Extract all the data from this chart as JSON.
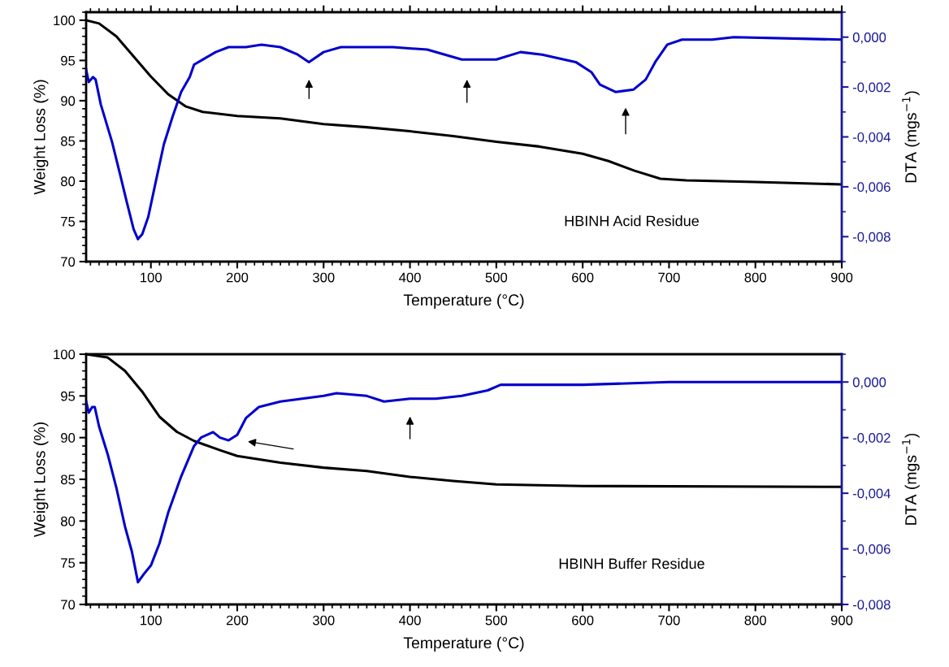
{
  "chart_data": [
    {
      "type": "line",
      "xlabel": "Temperature (°C)",
      "ylabel": "Weight Loss (%)",
      "y2label": "DTA (mgs$^{−1}$)",
      "annotations": [
        "HBINH Acid Residue"
      ],
      "xlim": [
        25,
        900
      ],
      "xticks": [
        100,
        200,
        300,
        400,
        500,
        600,
        700,
        800,
        900
      ],
      "ylim": [
        70,
        101
      ],
      "yticks": [
        70,
        75,
        80,
        85,
        90,
        95,
        100
      ],
      "y2lim": [
        -0.009,
        0.001
      ],
      "y2ticks": [
        {
          "value": 0,
          "label": "0,000"
        },
        {
          "value": -0.002,
          "label": "-0,002"
        },
        {
          "value": -0.004,
          "label": "-0,004"
        },
        {
          "value": -0.006,
          "label": "-0,006"
        },
        {
          "value": -0.008,
          "label": "-0,008"
        }
      ],
      "grid": false,
      "legend": false,
      "line_style": "solid",
      "marker": "none",
      "series": [
        {
          "color": "#000000",
          "x": [
            25,
            40,
            60,
            80,
            100,
            120,
            140,
            160,
            200,
            250,
            300,
            350,
            400,
            450,
            500,
            550,
            600,
            630,
            660,
            690,
            720,
            800,
            900
          ],
          "values": [
            100,
            99.6,
            98,
            95.5,
            93,
            90.8,
            89.3,
            88.6,
            88.1,
            87.8,
            87.1,
            86.7,
            86.2,
            85.6,
            84.9,
            84.3,
            83.4,
            82.5,
            81.3,
            80.3,
            80.1,
            79.9,
            79.6
          ]
        },
        {
          "color": "#0000cc",
          "axis": "y2",
          "x": [
            25,
            28,
            33,
            36,
            42,
            55,
            65,
            72,
            80,
            85,
            90,
            97,
            105,
            115,
            125,
            135,
            145,
            150,
            160,
            175,
            190,
            210,
            228,
            250,
            270,
            283,
            300,
            320,
            380,
            420,
            460,
            500,
            528,
            553,
            592,
            610,
            620,
            638,
            659,
            673,
            684,
            698,
            715,
            750,
            775,
            900
          ],
          "values": [
            -0.0013,
            -0.0018,
            -0.0016,
            -0.0017,
            -0.0027,
            -0.0042,
            -0.0056,
            -0.0066,
            -0.0077,
            -0.0081,
            -0.0079,
            -0.0072,
            -0.0059,
            -0.0043,
            -0.0032,
            -0.0022,
            -0.0016,
            -0.0011,
            -0.0009,
            -0.0006,
            -0.0004,
            -0.0004,
            -0.0003,
            -0.0004,
            -0.0007,
            -0.001,
            -0.0006,
            -0.0004,
            -0.0004,
            -0.0005,
            -0.0009,
            -0.0009,
            -0.0006,
            -0.0007,
            -0.001,
            -0.0014,
            -0.0019,
            -0.0022,
            -0.0021,
            -0.0017,
            -0.001,
            -0.0003,
            -0.0001,
            -0.0001,
            0,
            -0.0001
          ]
        }
      ]
    },
    {
      "type": "line",
      "xlabel": "Temperature (°C)",
      "ylabel": "Weight Loss (%)",
      "y2label": "DTA (mgs$^{−1}$)",
      "annotations": [
        "HBINH Buffer Residue"
      ],
      "xlim": [
        25,
        900
      ],
      "xticks": [
        100,
        200,
        300,
        400,
        500,
        600,
        700,
        800,
        900
      ],
      "ylim": [
        70,
        100
      ],
      "yticks": [
        70,
        75,
        80,
        85,
        90,
        95,
        100
      ],
      "y2lim": [
        -0.008,
        0.001
      ],
      "y2ticks": [
        {
          "value": 0,
          "label": "0,000"
        },
        {
          "value": -0.002,
          "label": "-0,002"
        },
        {
          "value": -0.004,
          "label": "-0,004"
        },
        {
          "value": -0.006,
          "label": "-0,006"
        },
        {
          "value": -0.008,
          "label": "-0,008"
        }
      ],
      "grid": false,
      "legend": false,
      "line_style": "solid",
      "marker": "none",
      "series": [
        {
          "color": "#000000",
          "x": [
            25,
            50,
            70,
            90,
            110,
            130,
            150,
            180,
            200,
            250,
            300,
            350,
            400,
            450,
            500,
            600,
            900
          ],
          "values": [
            100,
            99.6,
            98,
            95.5,
            92.5,
            90.7,
            89.6,
            88.5,
            87.8,
            87,
            86.4,
            86,
            85.3,
            84.8,
            84.4,
            84.2,
            84.1
          ]
        },
        {
          "color": "#0000cc",
          "axis": "y2",
          "x": [
            25,
            28,
            32,
            35,
            40,
            50,
            60,
            70,
            78,
            85,
            92,
            100,
            110,
            120,
            135,
            150,
            158,
            172,
            180,
            190,
            200,
            210,
            225,
            250,
            300,
            315,
            350,
            370,
            400,
            430,
            460,
            490,
            505,
            575,
            600,
            700,
            800,
            900
          ],
          "values": [
            -0.0007,
            -0.0011,
            -0.0009,
            -0.0009,
            -0.0016,
            -0.0026,
            -0.0038,
            -0.0052,
            -0.0061,
            -0.0072,
            -0.0069,
            -0.0066,
            -0.0058,
            -0.0047,
            -0.0034,
            -0.0023,
            -0.002,
            -0.0018,
            -0.002,
            -0.0021,
            -0.0019,
            -0.0013,
            -0.0009,
            -0.0007,
            -0.0005,
            -0.0004,
            -0.0005,
            -0.0007,
            -0.0006,
            -0.0006,
            -0.0005,
            -0.0003,
            -0.0001,
            -0.0001,
            -0.0001,
            0,
            0,
            0
          ]
        }
      ]
    }
  ]
}
